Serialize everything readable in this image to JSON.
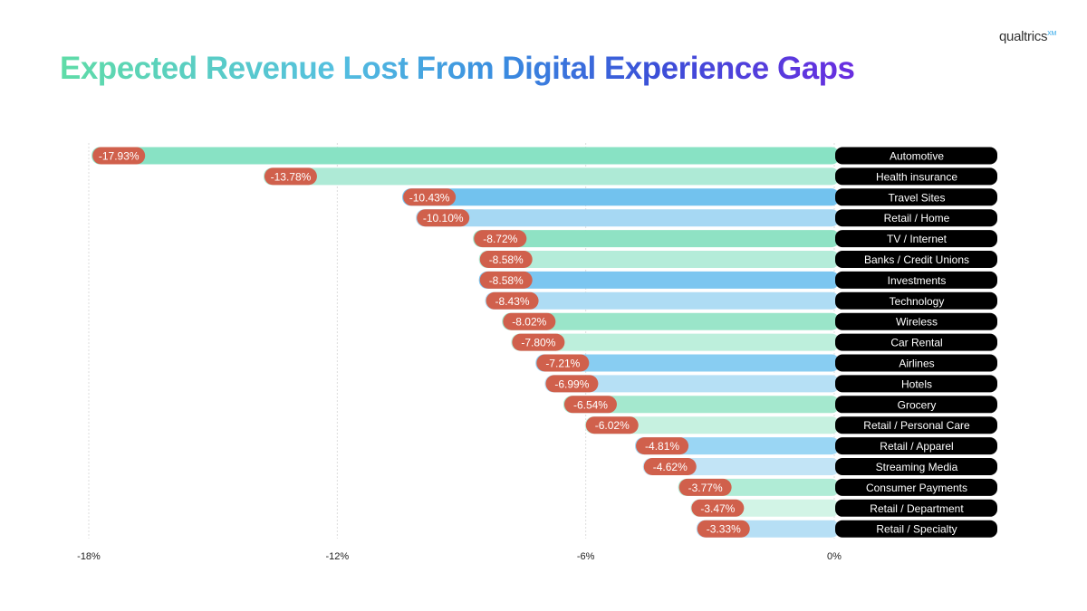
{
  "logo": {
    "text": "qualtrics",
    "sup": "XM"
  },
  "chart_data": {
    "type": "bar",
    "orientation": "horizontal",
    "title": "Expected Revenue Lost From Digital Experience Gaps",
    "categories": [
      "Automotive",
      "Health insurance",
      "Travel Sites",
      "Retail / Home",
      "TV / Internet",
      "Banks / Credit Unions",
      "Investments",
      "Technology",
      "Wireless",
      "Car Rental",
      "Airlines",
      "Hotels",
      "Grocery",
      "Retail / Personal Care",
      "Retail / Apparel",
      "Streaming Media",
      "Consumer Payments",
      "Retail / Department",
      "Retail / Specialty"
    ],
    "values": [
      -17.93,
      -13.78,
      -10.43,
      -10.1,
      -8.72,
      -8.58,
      -8.58,
      -8.43,
      -8.02,
      -7.8,
      -7.21,
      -6.99,
      -6.54,
      -6.02,
      -4.81,
      -4.62,
      -3.77,
      -3.47,
      -3.33
    ],
    "value_labels": [
      "-17.93%",
      "-13.78%",
      "-10.43%",
      "-10.10%",
      "-8.72%",
      "-8.58%",
      "-8.58%",
      "-8.43%",
      "-8.02%",
      "-7.80%",
      "-7.21%",
      "-6.99%",
      "-6.54%",
      "-6.02%",
      "-4.81%",
      "-4.62%",
      "-3.77%",
      "-3.47%",
      "-3.33%"
    ],
    "bar_colors": [
      "#88e2c4",
      "#aeead6",
      "#72c2ee",
      "#a6d8f3",
      "#8fe2c4",
      "#b4ecd9",
      "#7cc6f0",
      "#aedcf4",
      "#9ae5c9",
      "#bdefdc",
      "#88cdf2",
      "#b6e0f5",
      "#a4e8ce",
      "#c6f1e0",
      "#9ad6f4",
      "#c2e4f6",
      "#b0ecd6",
      "#d2f4e6",
      "#b6dff5"
    ],
    "label_color": "#d0604c",
    "xlim": [
      -18,
      0
    ],
    "xticks": [
      -18,
      -12,
      -6,
      0
    ],
    "xtick_labels": [
      "-18%",
      "-12%",
      "-6%",
      "0%"
    ],
    "grid": true
  }
}
